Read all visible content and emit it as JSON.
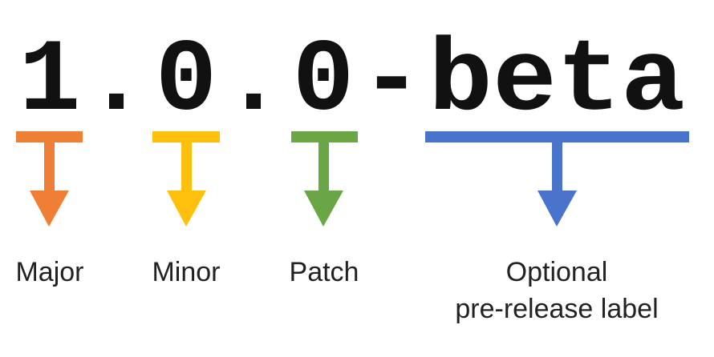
{
  "version": {
    "major": "1",
    "sep1": ".",
    "minor": "0",
    "sep2": ".",
    "patch": "0",
    "dash": "-",
    "prerelease": "beta"
  },
  "parts": [
    {
      "id": "major",
      "label_lines": [
        "Major"
      ],
      "color": "#ee7f35"
    },
    {
      "id": "minor",
      "label_lines": [
        "Minor"
      ],
      "color": "#fec00c"
    },
    {
      "id": "patch",
      "label_lines": [
        "Patch"
      ],
      "color": "#6aa645"
    },
    {
      "id": "prerelease",
      "label_lines": [
        "Optional",
        "pre-release label"
      ],
      "color": "#4a74cc"
    }
  ]
}
